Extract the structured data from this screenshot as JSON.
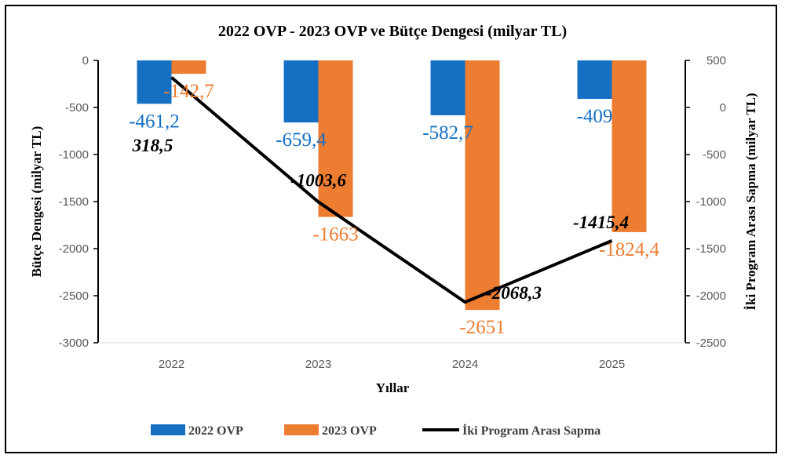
{
  "colors": {
    "ovp2022": "#1570c4",
    "ovp2023": "#ed7d31",
    "line": "#000000",
    "tick": "#595959"
  },
  "chart_data": {
    "type": "bar",
    "title": "2022 OVP - 2023 OVP ve Bütçe Dengesi (milyar TL)",
    "xlabel": "Yıllar",
    "ylabel": "Bütçe Dengesi (milyar TL)",
    "y2label": "İki Program Arası Sapma (milyar TL)",
    "categories": [
      "2022",
      "2023",
      "2024",
      "2025"
    ],
    "ylim": [
      -3000,
      0
    ],
    "y2lim": [
      -2500,
      500
    ],
    "yticks": [
      "0",
      "-500",
      "-1000",
      "-1500",
      "-2000",
      "-2500",
      "-3000"
    ],
    "y2ticks": [
      "500",
      "0",
      "-500",
      "-1000",
      "-1500",
      "-2000",
      "-2500"
    ],
    "series": [
      {
        "name": "2022 OVP",
        "type": "bar",
        "axis": "left",
        "values": [
          -461.2,
          -659.4,
          -582.7,
          -409
        ],
        "labels": [
          "-461,2",
          "-659,4",
          "-582,7",
          "-409"
        ]
      },
      {
        "name": "2023 OVP",
        "type": "bar",
        "axis": "left",
        "values": [
          -142.7,
          -1663,
          -2651,
          -1824.4
        ],
        "labels": [
          "-142,7",
          "-1663",
          "-2651",
          "-1824,4"
        ]
      },
      {
        "name": "İki Program Arası Sapma",
        "type": "line",
        "axis": "right",
        "values": [
          318.5,
          -1003.6,
          -2068.3,
          -1415.4
        ],
        "labels": [
          "318,5",
          "-1003,6",
          "-2068,3",
          "-1415,4"
        ]
      }
    ],
    "legend_position": "bottom",
    "grid": false
  }
}
